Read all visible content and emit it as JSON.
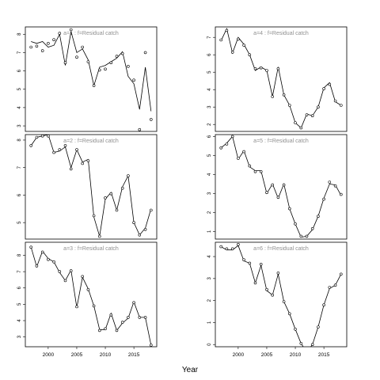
{
  "xlabel": "Year",
  "colors": {
    "panel_title": "#909090",
    "line": "#000000",
    "frame": "#000000"
  },
  "chart_data": [
    {
      "type": "line",
      "title": "a=1  :  f=Residual catch",
      "xlim": [
        1996,
        2019
      ],
      "ylim": [
        2.7,
        8.4
      ],
      "xticks": [],
      "yticks": [
        3,
        4,
        5,
        6,
        7,
        8
      ],
      "x": [
        1997,
        1998,
        1999,
        2000,
        2001,
        2002,
        2003,
        2004,
        2005,
        2006,
        2007,
        2008,
        2009,
        2010,
        2011,
        2012,
        2013,
        2014,
        2015,
        2016,
        2017,
        2018
      ],
      "observed": [
        7.3,
        7.35,
        7.1,
        7.5,
        7.7,
        8.05,
        6.45,
        8.25,
        6.75,
        7.3,
        6.5,
        5.2,
        6.05,
        6.1,
        6.45,
        6.8,
        6.95,
        6.25,
        5.5,
        2.8,
        7.0,
        3.35
      ],
      "fitted": [
        7.6,
        7.5,
        7.6,
        7.3,
        7.4,
        8.0,
        6.3,
        8.15,
        7.0,
        7.2,
        6.6,
        5.2,
        6.2,
        6.3,
        6.5,
        6.7,
        7.05,
        5.7,
        5.3,
        3.9,
        6.2,
        3.8
      ]
    },
    {
      "type": "line",
      "title": "a=4  :  f=Residual catch",
      "xlim": [
        1996,
        2019
      ],
      "ylim": [
        1.6,
        7.6
      ],
      "xticks": [],
      "yticks": [
        2,
        3,
        4,
        5,
        6,
        7
      ],
      "x": [
        1997,
        1998,
        1999,
        2000,
        2001,
        2002,
        2003,
        2004,
        2005,
        2006,
        2007,
        2008,
        2009,
        2010,
        2011,
        2012,
        2013,
        2014,
        2015,
        2016,
        2017,
        2018
      ],
      "observed": [
        6.85,
        7.4,
        6.15,
        6.9,
        6.55,
        6.0,
        5.2,
        5.25,
        5.1,
        3.6,
        5.2,
        3.7,
        3.1,
        2.1,
        1.8,
        2.55,
        2.5,
        3.0,
        4.05,
        4.3,
        3.35,
        3.1
      ],
      "fitted": [
        6.8,
        7.5,
        6.1,
        7.0,
        6.6,
        6.0,
        5.1,
        5.3,
        5.1,
        3.6,
        5.3,
        3.7,
        3.1,
        2.1,
        1.8,
        2.6,
        2.5,
        3.0,
        4.1,
        4.4,
        3.3,
        3.1
      ]
    },
    {
      "type": "line",
      "title": "a=2  :  f=Residual catch",
      "xlim": [
        1996,
        2019
      ],
      "ylim": [
        4.4,
        8.2
      ],
      "xticks": [],
      "yticks": [
        5,
        6,
        7,
        8
      ],
      "x": [
        1997,
        1998,
        1999,
        2000,
        2001,
        2002,
        2003,
        2004,
        2005,
        2006,
        2007,
        2008,
        2009,
        2010,
        2011,
        2012,
        2013,
        2014,
        2015,
        2016,
        2017,
        2018
      ],
      "observed": [
        7.8,
        8.1,
        8.15,
        8.15,
        7.55,
        7.65,
        7.8,
        6.95,
        7.65,
        7.15,
        7.25,
        5.25,
        4.5,
        5.9,
        6.05,
        5.45,
        6.25,
        6.7,
        5.0,
        4.55,
        4.75,
        5.45
      ],
      "fitted": [
        7.8,
        8.1,
        8.15,
        8.2,
        7.55,
        7.6,
        7.75,
        7.0,
        7.65,
        7.2,
        7.3,
        5.2,
        4.5,
        5.85,
        6.1,
        5.45,
        6.3,
        6.7,
        5.0,
        4.55,
        4.8,
        5.5
      ]
    },
    {
      "type": "line",
      "title": "a=5  :  f=Residual catch",
      "xlim": [
        1996,
        2019
      ],
      "ylim": [
        0.6,
        6.1
      ],
      "xticks": [],
      "yticks": [
        1,
        2,
        3,
        4,
        5,
        6
      ],
      "x": [
        1997,
        1998,
        1999,
        2000,
        2001,
        2002,
        2003,
        2004,
        2005,
        2006,
        2007,
        2008,
        2009,
        2010,
        2011,
        2012,
        2013,
        2014,
        2015,
        2016,
        2017,
        2018
      ],
      "observed": [
        5.4,
        5.6,
        6.0,
        4.85,
        5.2,
        4.45,
        4.15,
        4.15,
        3.05,
        3.45,
        2.8,
        3.45,
        2.2,
        1.4,
        0.75,
        0.75,
        1.15,
        1.8,
        2.7,
        3.6,
        3.4,
        2.95
      ],
      "fitted": [
        5.4,
        5.65,
        6.0,
        4.8,
        5.25,
        4.4,
        4.2,
        4.2,
        3.0,
        3.5,
        2.75,
        3.5,
        2.2,
        1.4,
        0.7,
        0.75,
        1.1,
        1.8,
        2.75,
        3.5,
        3.45,
        2.9
      ]
    },
    {
      "type": "line",
      "title": "a=3  :  f=Residual catch",
      "xlim": [
        1996,
        2019
      ],
      "ylim": [
        2.4,
        8.8
      ],
      "xticks": [
        2000,
        2005,
        2010,
        2015
      ],
      "yticks": [
        3,
        4,
        5,
        6,
        7,
        8
      ],
      "x": [
        1997,
        1998,
        1999,
        2000,
        2001,
        2002,
        2003,
        2004,
        2005,
        2006,
        2007,
        2008,
        2009,
        2010,
        2011,
        2012,
        2013,
        2014,
        2015,
        2016,
        2017,
        2018
      ],
      "observed": [
        8.5,
        7.35,
        8.2,
        7.75,
        7.6,
        7.0,
        6.45,
        7.05,
        4.85,
        6.7,
        5.9,
        4.9,
        3.4,
        3.5,
        4.35,
        3.4,
        3.9,
        4.2,
        5.1,
        4.2,
        4.2,
        2.5
      ],
      "fitted": [
        8.5,
        7.3,
        8.25,
        7.8,
        7.6,
        6.95,
        6.45,
        7.1,
        4.8,
        6.65,
        5.95,
        4.9,
        3.45,
        3.45,
        4.45,
        3.4,
        3.85,
        4.15,
        5.15,
        4.2,
        4.2,
        2.5
      ]
    },
    {
      "type": "line",
      "title": "a=6  :  f=Residual catch",
      "xlim": [
        1996,
        2019
      ],
      "ylim": [
        -0.1,
        4.65
      ],
      "xticks": [
        2000,
        2005,
        2010,
        2015
      ],
      "yticks": [
        0,
        1,
        2,
        3,
        4
      ],
      "x": [
        1997,
        1998,
        1999,
        2000,
        2001,
        2002,
        2003,
        2004,
        2005,
        2006,
        2007,
        2008,
        2009,
        2010,
        2011,
        2012,
        2013,
        2014,
        2015,
        2016,
        2017,
        2018
      ],
      "observed": [
        4.45,
        4.35,
        4.35,
        4.55,
        3.85,
        3.7,
        2.8,
        3.65,
        2.5,
        2.25,
        3.25,
        1.95,
        1.4,
        0.7,
        0.05,
        -0.3,
        0.0,
        0.8,
        1.8,
        2.6,
        2.7,
        3.2
      ],
      "fitted": [
        4.45,
        4.3,
        4.3,
        4.5,
        3.8,
        3.7,
        2.8,
        3.6,
        2.45,
        2.25,
        3.2,
        1.95,
        1.4,
        0.7,
        0.05,
        -0.35,
        0.0,
        0.8,
        1.8,
        2.55,
        2.7,
        3.2
      ]
    }
  ]
}
